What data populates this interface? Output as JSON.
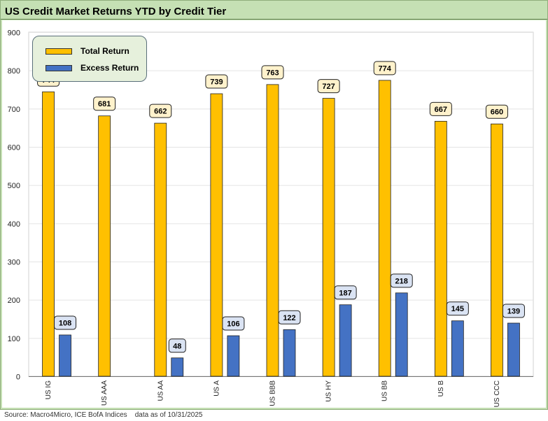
{
  "title": "US Credit Market Returns YTD by Credit Tier",
  "source_note": "Source: Macro4Micro, ICE BofA Indices    data as of 10/31/2025",
  "colors": {
    "total_return": "#ffc000",
    "excess_return": "#4472c4",
    "background": "#c5e0b4",
    "total_label_bg": "#fff2cc",
    "excess_label_bg": "#dae3f3"
  },
  "chart_data": {
    "type": "bar",
    "categories": [
      "US IG",
      "US AAA",
      "US AA",
      "US A",
      "US BBB",
      "US HY",
      "US BB",
      "US B",
      "US CCC"
    ],
    "series": [
      {
        "name": "Total Return",
        "values": [
          744,
          681,
          662,
          739,
          763,
          727,
          774,
          667,
          660
        ]
      },
      {
        "name": "Excess Return",
        "values": [
          108,
          null,
          48,
          106,
          122,
          187,
          218,
          145,
          139
        ]
      }
    ],
    "ylim": [
      0,
      900
    ],
    "yticks": [
      "0",
      "100",
      "200",
      "300",
      "400",
      "500",
      "600",
      "700",
      "800",
      "900"
    ],
    "grid": true,
    "legend": "top-left"
  }
}
